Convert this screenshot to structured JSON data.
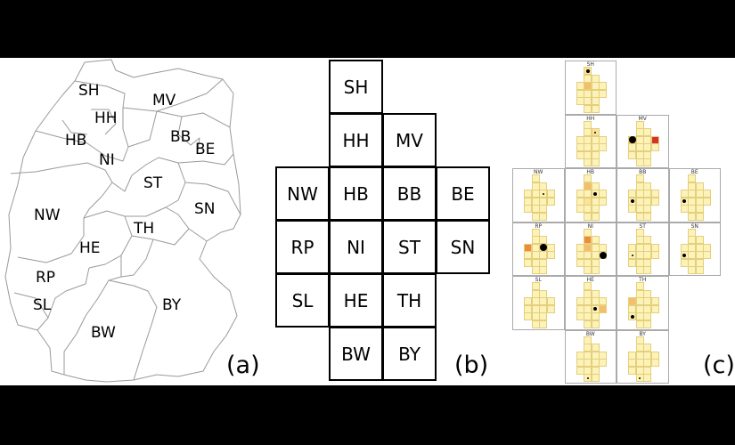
{
  "panels": {
    "a": {
      "tag": "(a)",
      "labels": [
        {
          "code": "SH"
        },
        {
          "code": "MV"
        },
        {
          "code": "HH"
        },
        {
          "code": "HB"
        },
        {
          "code": "NI"
        },
        {
          "code": "BB"
        },
        {
          "code": "BE"
        },
        {
          "code": "ST"
        },
        {
          "code": "NW"
        },
        {
          "code": "SN"
        },
        {
          "code": "TH"
        },
        {
          "code": "HE"
        },
        {
          "code": "RP"
        },
        {
          "code": "SL"
        },
        {
          "code": "BY"
        },
        {
          "code": "BW"
        }
      ]
    },
    "b": {
      "tag": "(b)",
      "tiles": [
        {
          "code": "SH",
          "row": 0,
          "col": 1
        },
        {
          "code": "HH",
          "row": 1,
          "col": 1
        },
        {
          "code": "MV",
          "row": 1,
          "col": 2
        },
        {
          "code": "NW",
          "row": 2,
          "col": 0
        },
        {
          "code": "HB",
          "row": 2,
          "col": 1
        },
        {
          "code": "BB",
          "row": 2,
          "col": 2
        },
        {
          "code": "BE",
          "row": 2,
          "col": 3
        },
        {
          "code": "RP",
          "row": 3,
          "col": 0
        },
        {
          "code": "NI",
          "row": 3,
          "col": 1
        },
        {
          "code": "ST",
          "row": 3,
          "col": 2
        },
        {
          "code": "SN",
          "row": 3,
          "col": 3
        },
        {
          "code": "SL",
          "row": 4,
          "col": 0
        },
        {
          "code": "HE",
          "row": 4,
          "col": 1
        },
        {
          "code": "TH",
          "row": 4,
          "col": 2
        },
        {
          "code": "BW",
          "row": 5,
          "col": 1
        },
        {
          "code": "BY",
          "row": 5,
          "col": 2
        }
      ]
    },
    "c": {
      "tag": "(c)",
      "colors": {
        "pale": "#fdf3b8",
        "light": "#fbe39a",
        "mid": "#f6be6a",
        "orange": "#ef8a3e",
        "red": "#d6322b"
      },
      "tiles": [
        {
          "code": "SH",
          "row": 0,
          "col": 1,
          "highlights": [
            {
              "cell": 4,
              "color": "mid"
            },
            {
              "cell": 0,
              "color": "light"
            }
          ],
          "dot": {
            "cell": 0,
            "size": "s"
          }
        },
        {
          "code": "HH",
          "row": 1,
          "col": 1,
          "highlights": [
            {
              "cell": 2,
              "color": "light"
            }
          ],
          "dot": {
            "cell": 2,
            "size": "xs"
          }
        },
        {
          "code": "MV",
          "row": 1,
          "col": 2,
          "highlights": [
            {
              "cell": 6,
              "color": "red"
            },
            {
              "cell": 3,
              "color": "mid"
            }
          ],
          "dot": {
            "cell": 3,
            "size": "l"
          }
        },
        {
          "code": "NW",
          "row": 2,
          "col": 0,
          "highlights": [],
          "dot": {
            "cell": 5,
            "size": "xs"
          }
        },
        {
          "code": "HB",
          "row": 2,
          "col": 1,
          "highlights": [
            {
              "cell": 1,
              "color": "mid"
            },
            {
              "cell": 8,
              "color": "light"
            }
          ],
          "dot": {
            "cell": 5,
            "size": "s"
          }
        },
        {
          "code": "BB",
          "row": 2,
          "col": 2,
          "highlights": [],
          "dot": {
            "cell": 7,
            "size": "s"
          }
        },
        {
          "code": "BE",
          "row": 2,
          "col": 3,
          "highlights": [],
          "dot": {
            "cell": 7,
            "size": "s"
          }
        },
        {
          "code": "RP",
          "row": 3,
          "col": 0,
          "highlights": [
            {
              "cell": 3,
              "color": "orange"
            },
            {
              "cell": 5,
              "color": "light"
            }
          ],
          "dot": {
            "cell": 5,
            "size": "l"
          }
        },
        {
          "code": "NI",
          "row": 3,
          "col": 1,
          "highlights": [
            {
              "cell": 1,
              "color": "orange"
            },
            {
              "cell": 4,
              "color": "mid"
            }
          ],
          "dot": {
            "cell": 10,
            "size": "l"
          }
        },
        {
          "code": "ST",
          "row": 3,
          "col": 2,
          "highlights": [],
          "dot": {
            "cell": 7,
            "size": "xs"
          }
        },
        {
          "code": "SN",
          "row": 3,
          "col": 3,
          "highlights": [],
          "dot": {
            "cell": 7,
            "size": "s"
          }
        },
        {
          "code": "SL",
          "row": 4,
          "col": 0,
          "highlights": [],
          "dot": null
        },
        {
          "code": "HE",
          "row": 4,
          "col": 1,
          "highlights": [
            {
              "cell": 10,
              "color": "mid"
            }
          ],
          "dot": {
            "cell": 9,
            "size": "s"
          }
        },
        {
          "code": "TH",
          "row": 4,
          "col": 2,
          "highlights": [
            {
              "cell": 3,
              "color": "mid"
            }
          ],
          "dot": {
            "cell": 11,
            "size": "s"
          }
        },
        {
          "code": "BW",
          "row": 5,
          "col": 1,
          "highlights": [],
          "dot": {
            "cell": 14,
            "size": "xs"
          }
        },
        {
          "code": "BY",
          "row": 5,
          "col": 2,
          "highlights": [],
          "dot": {
            "cell": 14,
            "size": "xs"
          }
        }
      ]
    }
  }
}
